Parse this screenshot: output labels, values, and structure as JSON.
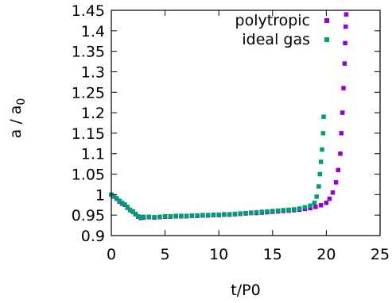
{
  "chart_data": {
    "type": "scatter",
    "title": "",
    "xlabel": "t/P0",
    "ylabel_main": "a / a",
    "ylabel_sub": "0",
    "xlim": [
      0,
      25
    ],
    "ylim": [
      0.9,
      1.45
    ],
    "xticks": [
      0,
      5,
      10,
      15,
      20,
      25
    ],
    "yticks": [
      0.9,
      0.95,
      1,
      1.05,
      1.1,
      1.15,
      1.2,
      1.25,
      1.3,
      1.35,
      1.4,
      1.45
    ],
    "xtick_labels": [
      "0",
      "5",
      "10",
      "15",
      "20",
      "25"
    ],
    "ytick_labels": [
      "0.9",
      "0.95",
      "1",
      "1.05",
      "1.1",
      "1.15",
      "1.2",
      "1.25",
      "1.3",
      "1.35",
      "1.4",
      "1.45"
    ],
    "grid": false,
    "legend_position": "top-right",
    "series": [
      {
        "name": "polytropic",
        "color": "#9400d3",
        "x": [
          0,
          0.25,
          0.5,
          0.75,
          1,
          1.25,
          1.5,
          1.75,
          2,
          2.25,
          2.5,
          2.75,
          3,
          3.5,
          4,
          4.5,
          5,
          5.5,
          6,
          6.5,
          7,
          7.5,
          8,
          8.5,
          9,
          9.5,
          10,
          10.5,
          11,
          11.5,
          12,
          12.5,
          13,
          13.5,
          14,
          14.5,
          15,
          15.5,
          16,
          16.5,
          17,
          17.5,
          18,
          18.5,
          19,
          19.5,
          20,
          20.3,
          20.6,
          20.9,
          21.1,
          21.3,
          21.4,
          21.5,
          21.6,
          21.7,
          21.75,
          21.8,
          21.85
        ],
        "y": [
          1.0,
          0.995,
          0.99,
          0.983,
          0.978,
          0.975,
          0.968,
          0.962,
          0.958,
          0.952,
          0.946,
          0.943,
          0.944,
          0.945,
          0.944,
          0.945,
          0.946,
          0.946,
          0.947,
          0.947,
          0.947,
          0.948,
          0.948,
          0.949,
          0.949,
          0.95,
          0.95,
          0.951,
          0.951,
          0.952,
          0.953,
          0.954,
          0.955,
          0.955,
          0.956,
          0.957,
          0.958,
          0.959,
          0.96,
          0.961,
          0.962,
          0.963,
          0.965,
          0.967,
          0.97,
          0.974,
          0.98,
          0.99,
          1.005,
          1.03,
          1.06,
          1.1,
          1.15,
          1.2,
          1.26,
          1.32,
          1.37,
          1.41,
          1.44
        ]
      },
      {
        "name": "ideal gas",
        "color": "#009e73",
        "x": [
          0,
          0.25,
          0.5,
          0.75,
          1,
          1.25,
          1.5,
          1.75,
          2,
          2.25,
          2.5,
          2.75,
          3,
          3.5,
          4,
          4.5,
          5,
          5.5,
          6,
          6.5,
          7,
          7.5,
          8,
          8.5,
          9,
          9.5,
          10,
          10.5,
          11,
          11.5,
          12,
          12.5,
          13,
          13.5,
          14,
          14.5,
          15,
          15.5,
          16,
          16.5,
          17,
          17.5,
          18,
          18.5,
          18.9,
          19.1,
          19.3,
          19.4,
          19.5,
          19.6,
          19.7,
          19.75
        ],
        "y": [
          1.0,
          0.996,
          0.991,
          0.985,
          0.98,
          0.976,
          0.97,
          0.963,
          0.959,
          0.953,
          0.947,
          0.945,
          0.946,
          0.946,
          0.945,
          0.946,
          0.947,
          0.947,
          0.948,
          0.948,
          0.948,
          0.949,
          0.949,
          0.95,
          0.95,
          0.951,
          0.951,
          0.952,
          0.952,
          0.953,
          0.954,
          0.955,
          0.956,
          0.957,
          0.958,
          0.959,
          0.96,
          0.961,
          0.962,
          0.963,
          0.964,
          0.966,
          0.969,
          0.973,
          0.98,
          0.995,
          1.02,
          1.05,
          1.08,
          1.11,
          1.15,
          1.19
        ]
      }
    ]
  }
}
